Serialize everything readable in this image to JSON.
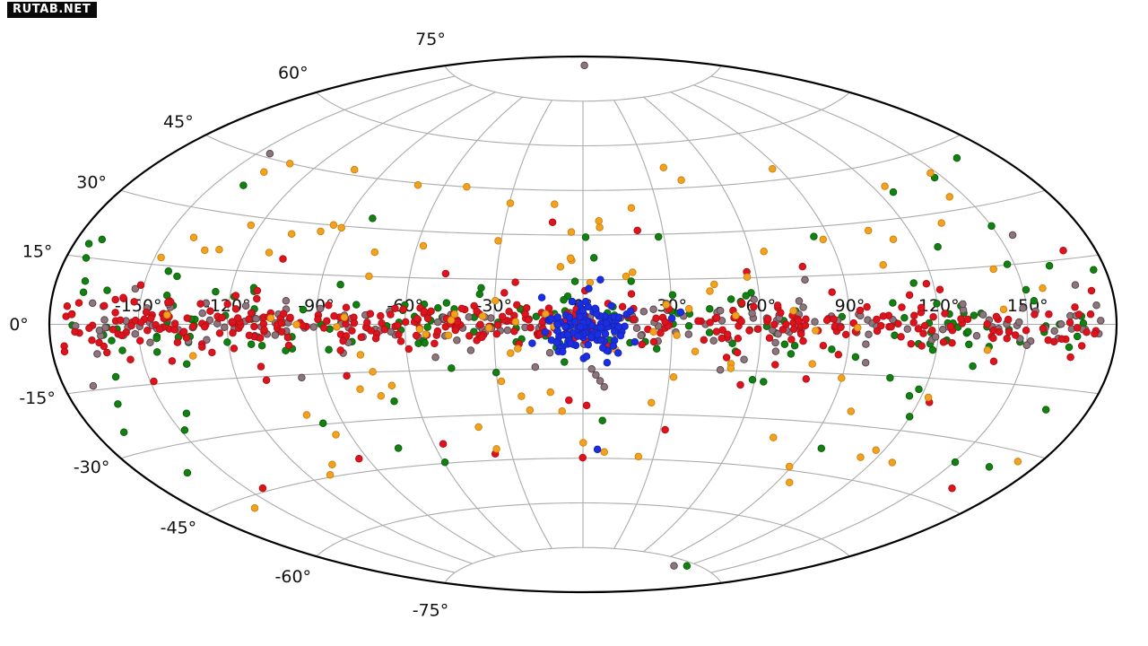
{
  "watermark": {
    "label": "RUTAB.NET",
    "bg_color": "#0a0a0a",
    "text_color": "#ffffff"
  },
  "chart_data": {
    "type": "scatter",
    "subtype": "all-sky-map",
    "projection": "aitoff",
    "title": "",
    "grid": {
      "grid_on": true,
      "lon_range_deg": [
        -180,
        180
      ],
      "lat_range_deg": [
        -90,
        90
      ],
      "lon_step_deg": 30,
      "lat_step_deg": 15,
      "meridian_lat_limit_deg": 75,
      "lat_lines_deg": [
        -75,
        -60,
        -45,
        -30,
        -15,
        0,
        15,
        30,
        45,
        60,
        75
      ],
      "lon_lines_deg": [
        -150,
        -120,
        -90,
        -60,
        -30,
        0,
        30,
        60,
        90,
        120,
        150
      ],
      "lat_tick_labels": [
        "-75°",
        "-60°",
        "-45°",
        "-30°",
        "-15°",
        "0°",
        "15°",
        "30°",
        "45°",
        "60°",
        "75°"
      ],
      "lon_tick_labels": [
        "-150°",
        "-120°",
        "-90°",
        "-60°",
        "-30°",
        "0°",
        "30°",
        "60°",
        "90°",
        "120°",
        "150°"
      ],
      "grid_color": "#ababab",
      "outline_color": "#000000",
      "label_color": "#111111"
    },
    "legend": null,
    "marker": {
      "radius_px": 3.8,
      "stroke_width_px": 0.9
    },
    "seed": 1337,
    "series": [
      {
        "name": "green",
        "color": "#128112",
        "edge_color": "#0a5c0a",
        "count": 214,
        "components": [
          {
            "n": 135,
            "lon": {
              "dist": "uniform",
              "min": -176,
              "max": 176
            },
            "lat": {
              "dist": "normal",
              "mu": 0,
              "sigma": 6.5,
              "absmax": 18
            }
          },
          {
            "n": 55,
            "lon": {
              "dist": "uniform",
              "min": -176,
              "max": 176
            },
            "lat": {
              "dist": "normal",
              "mu": 0,
              "sigma": 16,
              "absmax": 38
            }
          },
          {
            "n": 20,
            "lon": {
              "dist": "uniform",
              "min": -174,
              "max": 174
            },
            "lat": {
              "dist": "uniform",
              "min": -45,
              "max": 45
            }
          }
        ],
        "extra_points": [
          [
            120,
            -76
          ],
          [
            -175,
            18
          ],
          [
            176,
            12
          ],
          [
            -170,
            -25
          ]
        ]
      },
      {
        "name": "gray",
        "color": "#8d767b",
        "edge_color": "#55404a",
        "count": 220,
        "components": [
          {
            "n": 185,
            "lon": {
              "dist": "uniform",
              "min": -176,
              "max": 176
            },
            "lat": {
              "dist": "normal",
              "mu": 0,
              "sigma": 3.0,
              "absmax": 10
            }
          },
          {
            "n": 25,
            "lon": {
              "dist": "uniform",
              "min": -176,
              "max": 176
            },
            "lat": {
              "dist": "normal",
              "mu": 0,
              "sigma": 9.0,
              "absmax": 24
            }
          }
        ],
        "extra_points": [
          [
            6,
            87
          ],
          [
            3,
            -15
          ],
          [
            4.5,
            -17
          ],
          [
            6,
            -19
          ],
          [
            7.5,
            -21
          ],
          [
            110,
            -77
          ],
          [
            -145,
            46
          ],
          [
            -170,
            -14
          ],
          [
            168,
            9
          ],
          [
            155,
            22
          ]
        ]
      },
      {
        "name": "red",
        "color": "#dc141e",
        "edge_color": "#b30d15",
        "count": 410,
        "components": [
          {
            "n": 330,
            "lon": {
              "dist": "uniform",
              "min": -176,
              "max": 176
            },
            "lat": {
              "dist": "normal",
              "mu": 0,
              "sigma": 3.2,
              "absmax": 12
            }
          },
          {
            "n": 60,
            "lon": {
              "dist": "uniform",
              "min": -176,
              "max": 176
            },
            "lat": {
              "dist": "normal",
              "mu": 0,
              "sigma": 10,
              "absmax": 28
            }
          },
          {
            "n": 20,
            "lon": {
              "dist": "uniform",
              "min": -172,
              "max": 172
            },
            "lat": {
              "dist": "uniform",
              "min": -45,
              "max": 45
            }
          }
        ],
        "extra_points": []
      },
      {
        "name": "orange",
        "color": "#f2a21f",
        "edge_color": "#cd7f0a",
        "count": 115,
        "components": [
          {
            "n": 60,
            "lon": {
              "dist": "normal",
              "mu": 0,
              "sigma": 70,
              "absmax": 160
            },
            "lat": {
              "dist": "normal",
              "mu": 0,
              "sigma": 20,
              "absmax": 50
            }
          },
          {
            "n": 55,
            "lon": {
              "dist": "uniform",
              "min": -174,
              "max": 174
            },
            "lat": {
              "dist": "uniform",
              "min": -52,
              "max": 52
            }
          }
        ],
        "extra_points": []
      },
      {
        "name": "blue",
        "color": "#1b2ee0",
        "edge_color": "#1525b8",
        "count": 130,
        "components": [
          {
            "n": 124,
            "lon": {
              "dist": "normal",
              "mu": 1.5,
              "sigma": 7,
              "absmax": 22
            },
            "lat": {
              "dist": "normal",
              "mu": -2,
              "sigma": 4.5,
              "absmax": 13
            }
          }
        ],
        "extra_points": [
          [
            6,
            -42
          ],
          [
            2,
            12
          ],
          [
            6,
            15
          ],
          [
            33,
            4
          ],
          [
            30,
            2
          ],
          [
            -14,
            9
          ]
        ]
      }
    ]
  }
}
